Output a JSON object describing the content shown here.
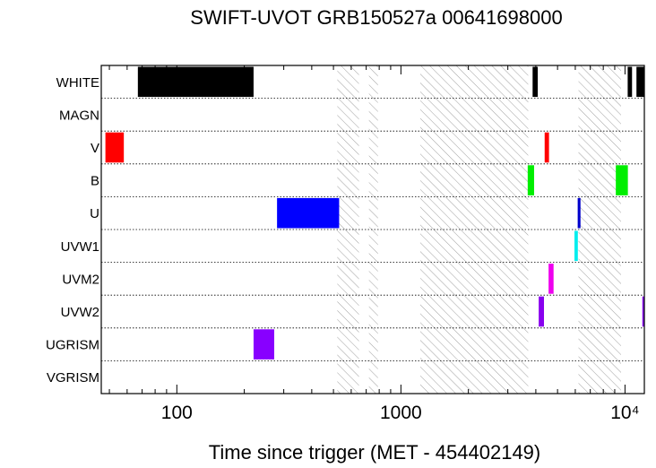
{
  "chart_data": {
    "type": "timeline",
    "title": "SWIFT-UVOT GRB150527a 00641698000",
    "xlabel": "Time since trigger (MET - 454402149)",
    "x_scale": "log",
    "xlim": [
      46,
      12200
    ],
    "x_ticks": [
      {
        "value": 100,
        "label": "100"
      },
      {
        "value": 1000,
        "label": "1000"
      },
      {
        "value": 10000,
        "label": "10⁴"
      }
    ],
    "rows": [
      "WHITE",
      "MAGN",
      "V",
      "B",
      "U",
      "UVW1",
      "UVM2",
      "UVW2",
      "UGRISM",
      "VGRISM"
    ],
    "intervals": [
      {
        "row": "WHITE",
        "start": 67,
        "end": 220,
        "color": "#000000"
      },
      {
        "row": "WHITE",
        "start": 3870,
        "end": 4080,
        "color": "#000000"
      },
      {
        "row": "WHITE",
        "start": 10280,
        "end": 10750,
        "color": "#000000"
      },
      {
        "row": "WHITE",
        "start": 11250,
        "end": 12200,
        "color": "#000000"
      },
      {
        "row": "V",
        "start": 48,
        "end": 58,
        "color": "#ff0000"
      },
      {
        "row": "V",
        "start": 4380,
        "end": 4580,
        "color": "#ff0000"
      },
      {
        "row": "B",
        "start": 3680,
        "end": 3930,
        "color": "#00ee00"
      },
      {
        "row": "B",
        "start": 9100,
        "end": 10300,
        "color": "#00ee00"
      },
      {
        "row": "U",
        "start": 280,
        "end": 530,
        "color": "#0000ff"
      },
      {
        "row": "U",
        "start": 6150,
        "end": 6330,
        "color": "#0000cc"
      },
      {
        "row": "UVW1",
        "start": 5950,
        "end": 6160,
        "color": "#00eeee"
      },
      {
        "row": "UVM2",
        "start": 4560,
        "end": 4800,
        "color": "#ee00ee"
      },
      {
        "row": "UVW2",
        "start": 4120,
        "end": 4350,
        "color": "#8800ee"
      },
      {
        "row": "UVW2",
        "start": 11950,
        "end": 12200,
        "color": "#8800ee"
      },
      {
        "row": "UGRISM",
        "start": 220,
        "end": 272,
        "color": "#8800ff"
      }
    ],
    "hatched_intervals": [
      {
        "start": 520,
        "end": 650
      },
      {
        "start": 720,
        "end": 790
      },
      {
        "start": 1220,
        "end": 3700
      },
      {
        "start": 6200,
        "end": 9600
      }
    ],
    "row_separators": "dotted",
    "grid": false
  }
}
